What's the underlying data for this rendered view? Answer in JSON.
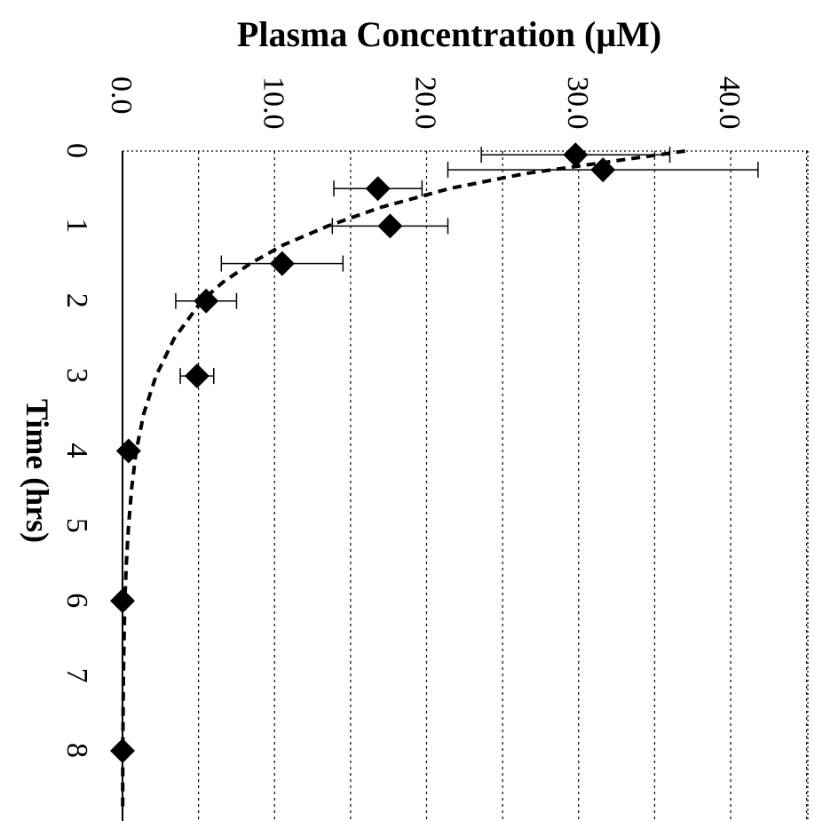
{
  "chart_data": {
    "type": "scatter",
    "ylabel": "Plasma Concentration (μM)",
    "xlabel": "Time (hrs)",
    "ylim": [
      0,
      45
    ],
    "xlim": [
      0,
      8.8
    ],
    "y_ticks": [
      "0.0",
      "10.0",
      "20.0",
      "30.0",
      "40.0"
    ],
    "y_tick_values": [
      0,
      10,
      20,
      30,
      40
    ],
    "x_ticks": [
      "0",
      "1",
      "2",
      "3",
      "4",
      "5",
      "6",
      "7",
      "8"
    ],
    "x_tick_values": [
      0,
      1,
      2,
      3,
      4,
      5,
      6,
      7,
      8
    ],
    "grid": true,
    "orientation": "rotated 90° clockwise",
    "points": [
      {
        "x": 0.05,
        "y": 29.8,
        "err": 6.2
      },
      {
        "x": 0.25,
        "y": 31.6,
        "err": 10.2
      },
      {
        "x": 0.5,
        "y": 16.8,
        "err": 2.9
      },
      {
        "x": 1.0,
        "y": 17.6,
        "err": 3.8
      },
      {
        "x": 1.5,
        "y": 10.5,
        "err": 4.0
      },
      {
        "x": 2.0,
        "y": 5.5,
        "err": 2.0
      },
      {
        "x": 3.0,
        "y": 4.9,
        "err": 1.1
      },
      {
        "x": 4.0,
        "y": 0.4,
        "err": 0
      },
      {
        "x": 6.0,
        "y": 0.0,
        "err": 0
      },
      {
        "x": 8.0,
        "y": 0.0,
        "err": 0
      }
    ],
    "fit_curve": {
      "style": "dashed",
      "x": [
        0.0,
        0.1,
        0.2,
        0.3,
        0.5,
        0.75,
        1.0,
        1.25,
        1.5,
        1.75,
        2.0,
        2.5,
        3.0,
        3.5,
        4.0,
        4.5,
        5.0,
        5.5,
        6.0,
        7.0,
        8.0,
        8.8
      ],
      "y": [
        37.0,
        33.5,
        30.0,
        26.5,
        21.5,
        17.0,
        13.5,
        10.6,
        8.4,
        6.6,
        5.2,
        3.4,
        2.2,
        1.4,
        0.9,
        0.6,
        0.4,
        0.25,
        0.15,
        0.06,
        0.02,
        0.01
      ]
    }
  }
}
